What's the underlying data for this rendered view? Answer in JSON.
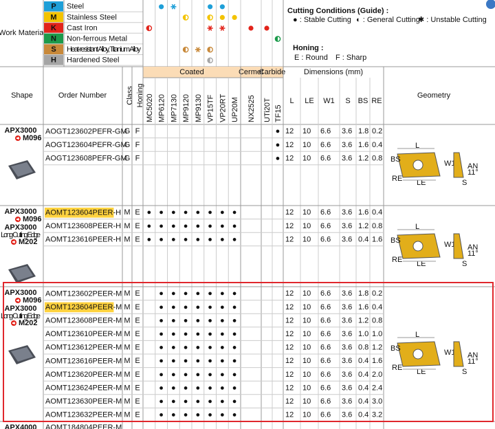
{
  "work_material": {
    "label": "Work Material",
    "rows": [
      {
        "code": "P",
        "name": "Steel",
        "color": "#1e9fd8"
      },
      {
        "code": "M",
        "name": "Stainless Steel",
        "color": "#f3c300"
      },
      {
        "code": "K",
        "name": "Cast Iron",
        "color": "#e2231a"
      },
      {
        "code": "N",
        "name": "Non-ferrous Metal",
        "color": "#1b9a4a"
      },
      {
        "code": "S",
        "name": "Heat-resistant Alloy, Titanium Alloy",
        "color": "#c8893a"
      },
      {
        "code": "H",
        "name": "Hardened Steel",
        "color": "#a5a5a5"
      }
    ]
  },
  "legend": {
    "title": "Cutting Conditions (Guide) :",
    "items": [
      "● : Stable Cutting",
      "◐ : General Cutting",
      "✱ : Unstable Cutting"
    ],
    "honing_title": "Honing :",
    "honing_items": [
      "E : Round",
      "F : Sharp"
    ]
  },
  "headers": {
    "shape": "Shape",
    "order": "Order Number",
    "class": "Class",
    "honing": "Honing",
    "coated": "Coated",
    "cermet": "Cermet",
    "carbide": "Carbide",
    "dimensions": "Dimensions (mm)",
    "geometry": "Geometry"
  },
  "grades": [
    "MC5020",
    "MP6120",
    "MP7130",
    "MP9120",
    "MP9130",
    "VP15TF",
    "VP20RT",
    "UP20M",
    "NX2525",
    "UTi20T",
    "TF15"
  ],
  "dims": [
    "L",
    "LE",
    "W1",
    "S",
    "BS",
    "RE"
  ],
  "geometry_labels": {
    "L": "L",
    "W1": "W1",
    "BS": "BS",
    "RE": "RE",
    "LE": "LE",
    "S": "S",
    "AN": "AN",
    "angle": "11°"
  },
  "groups": [
    {
      "shape": [
        {
          "series": "APX3000",
          "code": "M096"
        }
      ],
      "rows": [
        {
          "order": [
            "AOGT123602PEFR",
            "-GM"
          ],
          "class": "G",
          "honing": "F",
          "grades": [
            null,
            null,
            null,
            null,
            null,
            null,
            null,
            null,
            null,
            null,
            "●"
          ],
          "dims": [
            "12",
            "10",
            "6.6",
            "3.6",
            "1.8",
            "0.2"
          ]
        },
        {
          "order": [
            "AOGT123604PEFR",
            "-GM"
          ],
          "class": "G",
          "honing": "F",
          "grades": [
            null,
            null,
            null,
            null,
            null,
            null,
            null,
            null,
            null,
            null,
            "●"
          ],
          "dims": [
            "12",
            "10",
            "6.6",
            "3.6",
            "1.6",
            "0.4"
          ]
        },
        {
          "order": [
            "AOGT123608PEFR",
            "-GM"
          ],
          "class": "G",
          "honing": "F",
          "grades": [
            null,
            null,
            null,
            null,
            null,
            null,
            null,
            null,
            null,
            null,
            "●"
          ],
          "dims": [
            "12",
            "10",
            "6.6",
            "3.6",
            "1.2",
            "0.8"
          ]
        }
      ]
    },
    {
      "shape": [
        {
          "series": "APX3000",
          "code": "M096"
        },
        {
          "series": "APX3000",
          "note": "Long Cutting Edge",
          "code": "M202"
        }
      ],
      "rows": [
        {
          "order": [
            "AOMT123604PEER",
            "-H"
          ],
          "highlight": true,
          "class": "M",
          "honing": "E",
          "grades": [
            "●",
            "●",
            "●",
            "●",
            "●",
            "●",
            "●",
            "●",
            null,
            null,
            null
          ],
          "dims": [
            "12",
            "10",
            "6.6",
            "3.6",
            "1.6",
            "0.4"
          ]
        },
        {
          "order": [
            "AOMT123608PEER",
            "-H"
          ],
          "class": "M",
          "honing": "E",
          "grades": [
            "●",
            "●",
            "●",
            "●",
            "●",
            "●",
            "●",
            "●",
            null,
            null,
            null
          ],
          "dims": [
            "12",
            "10",
            "6.6",
            "3.6",
            "1.2",
            "0.8"
          ]
        },
        {
          "order": [
            "AOMT123616PEER",
            "-H"
          ],
          "class": "M",
          "honing": "E",
          "grades": [
            "●",
            "●",
            "●",
            "●",
            "●",
            "●",
            "●",
            "●",
            null,
            null,
            null
          ],
          "dims": [
            "12",
            "10",
            "6.6",
            "3.6",
            "0.4",
            "1.6"
          ]
        }
      ]
    },
    {
      "shape": [
        {
          "series": "APX3000",
          "code": "M096"
        },
        {
          "series": "APX3000",
          "note": "Long Cutting Edge",
          "code": "M202"
        }
      ],
      "rows": [
        {
          "order": [
            "AOMT123602PEER",
            "-M"
          ],
          "class": "M",
          "honing": "E",
          "grades": [
            null,
            "●",
            "●",
            "●",
            "●",
            "●",
            "●",
            "●",
            null,
            null,
            null
          ],
          "dims": [
            "12",
            "10",
            "6.6",
            "3.6",
            "1.8",
            "0.2"
          ]
        },
        {
          "order": [
            "AOMT123604PEER",
            "-M"
          ],
          "highlight": true,
          "class": "M",
          "honing": "E",
          "grades": [
            null,
            "●",
            "●",
            "●",
            "●",
            "●",
            "●",
            "●",
            null,
            null,
            null
          ],
          "dims": [
            "12",
            "10",
            "6.6",
            "3.6",
            "1.6",
            "0.4"
          ]
        },
        {
          "order": [
            "AOMT123608PEER",
            "-M"
          ],
          "class": "M",
          "honing": "E",
          "grades": [
            null,
            "●",
            "●",
            "●",
            "●",
            "●",
            "●",
            "●",
            null,
            null,
            null
          ],
          "dims": [
            "12",
            "10",
            "6.6",
            "3.6",
            "1.2",
            "0.8"
          ]
        },
        {
          "order": [
            "AOMT123610PEER",
            "-M"
          ],
          "class": "M",
          "honing": "E",
          "grades": [
            null,
            "●",
            "●",
            "●",
            "●",
            "●",
            "●",
            "●",
            null,
            null,
            null
          ],
          "dims": [
            "12",
            "10",
            "6.6",
            "3.6",
            "1.0",
            "1.0"
          ]
        },
        {
          "order": [
            "AOMT123612PEER",
            "-M"
          ],
          "class": "M",
          "honing": "E",
          "grades": [
            null,
            "●",
            "●",
            "●",
            "●",
            "●",
            "●",
            "●",
            null,
            null,
            null
          ],
          "dims": [
            "12",
            "10",
            "6.6",
            "3.6",
            "0.8",
            "1.2"
          ]
        },
        {
          "order": [
            "AOMT123616PEER",
            "-M"
          ],
          "class": "M",
          "honing": "E",
          "grades": [
            null,
            "●",
            "●",
            "●",
            "●",
            "●",
            "●",
            "●",
            null,
            null,
            null
          ],
          "dims": [
            "12",
            "10",
            "6.6",
            "3.6",
            "0.4",
            "1.6"
          ]
        },
        {
          "order": [
            "AOMT123620PEER",
            "-M"
          ],
          "class": "M",
          "honing": "E",
          "grades": [
            null,
            "●",
            "●",
            "●",
            "●",
            "●",
            "●",
            "●",
            null,
            null,
            null
          ],
          "dims": [
            "12",
            "10",
            "6.6",
            "3.6",
            "0.4",
            "2.0"
          ]
        },
        {
          "order": [
            "AOMT123624PEER",
            "-M"
          ],
          "class": "M",
          "honing": "E",
          "grades": [
            null,
            "●",
            "●",
            "●",
            "●",
            "●",
            "●",
            "●",
            null,
            null,
            null
          ],
          "dims": [
            "12",
            "10",
            "6.6",
            "3.6",
            "0.4",
            "2.4"
          ]
        },
        {
          "order": [
            "AOMT123630PEER",
            "-M"
          ],
          "class": "M",
          "honing": "E",
          "grades": [
            null,
            "●",
            "●",
            "●",
            "●",
            "●",
            "●",
            "●",
            null,
            null,
            null
          ],
          "dims": [
            "12",
            "10",
            "6.6",
            "3.6",
            "0.4",
            "3.0"
          ]
        },
        {
          "order": [
            "AOMT123632PEER",
            "-M"
          ],
          "class": "M",
          "honing": "E",
          "grades": [
            null,
            "●",
            "●",
            "●",
            "●",
            "●",
            "●",
            "●",
            null,
            null,
            null
          ],
          "dims": [
            "12",
            "10",
            "6.6",
            "3.6",
            "0.4",
            "3.2"
          ]
        }
      ]
    }
  ],
  "next_row": {
    "series": "APX4000",
    "order": "AOMT184804PEER-M"
  }
}
